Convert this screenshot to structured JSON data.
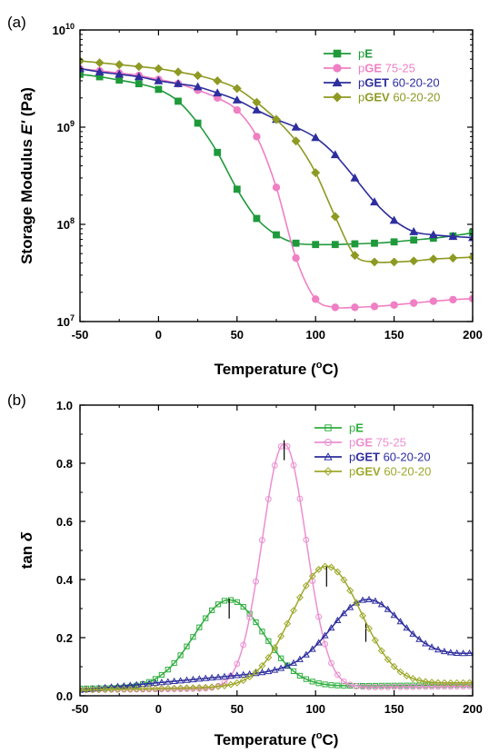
{
  "chart_data": [
    {
      "panel_label": "(a)",
      "type": "line",
      "xlabel_main": "Temperature (",
      "xlabel_sup": "o",
      "xlabel_end": "C)",
      "ylabel_main": "Storage Modulus ",
      "ylabel_italic": "E'",
      "ylabel_end": " (Pa)",
      "xlim": [
        -50,
        200
      ],
      "ylim": [
        10000000,
        10000000000
      ],
      "yscale": "log",
      "x_ticks": [
        -50,
        0,
        50,
        100,
        150,
        200
      ],
      "x_tick_labels": [
        "-50",
        "0",
        "50",
        "100",
        "150",
        "200"
      ],
      "y_ticks": [
        10000000,
        100000000,
        1000000000,
        10000000000
      ],
      "y_tick_base": [
        "10",
        "10",
        "10",
        "10"
      ],
      "y_tick_exp": [
        "7",
        "8",
        "9",
        "10"
      ],
      "grid": false,
      "legend_position": "top-right",
      "series": [
        {
          "legend_prefix": "p",
          "legend_bold": "E",
          "legend_suffix": "",
          "color": "#1f9a3b",
          "marker": "square",
          "filled": true,
          "x": [
            -50,
            -37.5,
            -25,
            -12.5,
            0,
            12.5,
            25,
            37.5,
            50,
            62.5,
            75,
            87.5,
            100,
            112.5,
            125,
            137.5,
            150,
            162.5,
            175,
            187.5,
            200
          ],
          "y": [
            3500000000,
            3300000000,
            3050000000,
            2800000000,
            2450000000,
            1850000000,
            1100000000,
            550000000,
            230000000,
            115000000,
            78000000,
            64000000,
            62000000,
            62000000,
            63000000,
            64000000,
            66000000,
            69000000,
            72000000,
            76000000,
            82000000
          ]
        },
        {
          "legend_prefix": "p",
          "legend_bold": "GE",
          "legend_suffix": " 75-25",
          "color": "#f07fc4",
          "marker": "circle",
          "filled": true,
          "x": [
            -50,
            -37.5,
            -25,
            -12.5,
            0,
            12.5,
            25,
            37.5,
            50,
            62.5,
            75,
            87.5,
            100,
            112.5,
            125,
            137.5,
            150,
            162.5,
            175,
            187.5,
            200
          ],
          "y": [
            4000000000,
            3800000000,
            3600000000,
            3400000000,
            3100000000,
            2800000000,
            2400000000,
            2000000000,
            1500000000,
            800000000,
            240000000,
            45000000,
            17000000,
            14000000,
            14000000,
            14300000,
            14800000,
            15500000,
            16200000,
            16800000,
            17200000
          ]
        },
        {
          "legend_prefix": "p",
          "legend_bold": "GET",
          "legend_suffix": " 60-20-20",
          "color": "#2e2e9e",
          "marker": "triangle",
          "filled": true,
          "x": [
            -50,
            -37.5,
            -25,
            -12.5,
            0,
            12.5,
            25,
            37.5,
            50,
            62.5,
            75,
            87.5,
            100,
            112.5,
            125,
            137.5,
            150,
            162.5,
            175,
            187.5,
            200
          ],
          "y": [
            4000000000,
            3700000000,
            3500000000,
            3300000000,
            3000000000,
            2800000000,
            2600000000,
            2250000000,
            1900000000,
            1500000000,
            1200000000,
            1000000000,
            780000000,
            520000000,
            300000000,
            170000000,
            110000000,
            84000000,
            78000000,
            75000000,
            73000000
          ]
        },
        {
          "legend_prefix": "p",
          "legend_bold": "GEV",
          "legend_suffix": " 60-20-20",
          "color": "#8e9a22",
          "marker": "diamond",
          "filled": true,
          "x": [
            -50,
            -37.5,
            -25,
            -12.5,
            0,
            12.5,
            25,
            37.5,
            50,
            62.5,
            75,
            87.5,
            100,
            112.5,
            125,
            137.5,
            150,
            162.5,
            175,
            187.5,
            200
          ],
          "y": [
            4800000000,
            4600000000,
            4400000000,
            4200000000,
            4000000000,
            3700000000,
            3400000000,
            3000000000,
            2500000000,
            1800000000,
            1200000000,
            720000000,
            340000000,
            120000000,
            48000000,
            41000000,
            41000000,
            42000000,
            44000000,
            45000000,
            46000000
          ]
        }
      ]
    },
    {
      "panel_label": "(b)",
      "type": "line",
      "xlabel_main": "Temperature (",
      "xlabel_sup": "o",
      "xlabel_end": "C)",
      "ylabel_main": "tan ",
      "ylabel_italic": "δ",
      "ylabel_end": "",
      "xlim": [
        -50,
        200
      ],
      "ylim": [
        0,
        1.0
      ],
      "yscale": "linear",
      "x_ticks": [
        -50,
        0,
        50,
        100,
        150,
        200
      ],
      "x_tick_labels": [
        "-50",
        "0",
        "50",
        "100",
        "150",
        "200"
      ],
      "y_ticks": [
        0,
        0.2,
        0.4,
        0.6,
        0.8,
        1.0
      ],
      "y_tick_labels": [
        "0.0",
        "0.2",
        "0.4",
        "0.6",
        "0.8",
        "1.0"
      ],
      "grid": false,
      "legend_position": "top-right",
      "series": [
        {
          "legend_prefix": "p",
          "legend_bold": "E",
          "legend_suffix": "",
          "color": "#2fae3f",
          "marker": "square",
          "filled": false,
          "peak": {
            "center": 45,
            "height": 0.3,
            "width": 22,
            "baseline": 0.025,
            "base_slope": 5e-05
          },
          "peak_marker": [
            45,
            0.3
          ]
        },
        {
          "legend_prefix": "p",
          "legend_bold": "GE",
          "legend_suffix": " 75-25",
          "color": "#ec8fd0",
          "marker": "circle",
          "filled": false,
          "peak": {
            "center": 80,
            "height": 0.84,
            "width": 14,
            "baseline": 0.02,
            "base_slope": 5e-05
          },
          "peak_marker": [
            80,
            0.845
          ]
        },
        {
          "legend_prefix": "p",
          "legend_bold": "GET",
          "legend_suffix": " 60-20-20",
          "color": "#2e2e9e",
          "marker": "triangle",
          "filled": false,
          "peak": {
            "center": 132,
            "height": 0.22,
            "width": 22,
            "baseline": 0.02,
            "base_slope": 0.0005
          },
          "peak_marker": [
            132,
            0.22
          ]
        },
        {
          "legend_prefix": "p",
          "legend_bold": "GEV",
          "legend_suffix": " 60-20-20",
          "color": "#9ea82a",
          "marker": "diamond",
          "filled": false,
          "peak": {
            "center": 107,
            "height": 0.41,
            "width": 22,
            "baseline": 0.02,
            "base_slope": 0.0001
          },
          "peak_marker": [
            107,
            0.41
          ]
        }
      ]
    }
  ]
}
